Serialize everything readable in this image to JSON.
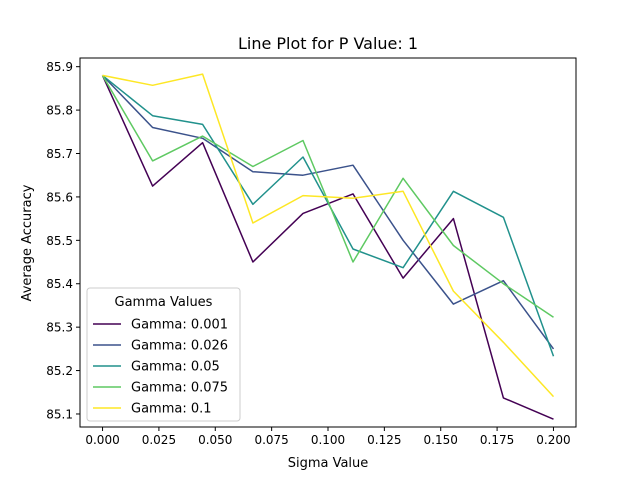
{
  "chart_data": {
    "type": "line",
    "title": "Line Plot for P Value: 1",
    "xlabel": "Sigma Value",
    "ylabel": "Average Accuracy",
    "xlim": [
      -0.01,
      0.21
    ],
    "ylim": [
      85.07,
      85.92
    ],
    "xticks": [
      0.0,
      0.025,
      0.05,
      0.075,
      0.1,
      0.125,
      0.15,
      0.175,
      0.2
    ],
    "xtick_labels": [
      "0.000",
      "0.025",
      "0.050",
      "0.075",
      "0.100",
      "0.125",
      "0.150",
      "0.175",
      "0.200"
    ],
    "yticks": [
      85.1,
      85.2,
      85.3,
      85.4,
      85.5,
      85.6,
      85.7,
      85.8,
      85.9
    ],
    "ytick_labels": [
      "85.1",
      "85.2",
      "85.3",
      "85.4",
      "85.5",
      "85.6",
      "85.7",
      "85.8",
      "85.9"
    ],
    "grid": false,
    "legend": {
      "title": "Gamma Values",
      "placement": "lower-left"
    },
    "x": [
      0.0,
      0.0222,
      0.0444,
      0.0667,
      0.0889,
      0.1111,
      0.1333,
      0.1556,
      0.1778,
      0.2
    ],
    "series": [
      {
        "name": "Gamma: 0.001",
        "color": "#440154",
        "values": [
          85.88,
          85.625,
          85.725,
          85.45,
          85.562,
          85.607,
          85.413,
          85.55,
          85.137,
          85.088
        ]
      },
      {
        "name": "Gamma: 0.026",
        "color": "#3b528b",
        "values": [
          85.88,
          85.76,
          85.735,
          85.658,
          85.65,
          85.673,
          85.5,
          85.353,
          85.407,
          85.25
        ]
      },
      {
        "name": "Gamma: 0.05",
        "color": "#21918c",
        "values": [
          85.88,
          85.787,
          85.767,
          85.583,
          85.692,
          85.48,
          85.437,
          85.613,
          85.553,
          85.233
        ]
      },
      {
        "name": "Gamma: 0.075",
        "color": "#5ec962",
        "values": [
          85.88,
          85.683,
          85.74,
          85.67,
          85.73,
          85.45,
          85.643,
          85.488,
          85.4,
          85.323
        ]
      },
      {
        "name": "Gamma: 0.1",
        "color": "#fde725",
        "values": [
          85.88,
          85.857,
          85.883,
          85.54,
          85.603,
          85.597,
          85.613,
          85.383,
          85.265,
          85.14
        ]
      }
    ]
  }
}
